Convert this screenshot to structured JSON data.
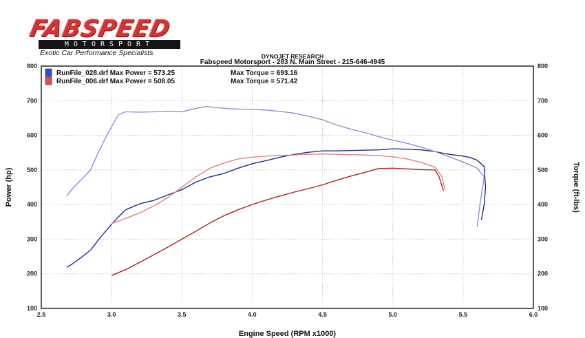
{
  "logo": {
    "word": "FABSPEED",
    "sub": "MOTORSPORT",
    "tagline": "Exotic Car Performance Specialists"
  },
  "header": {
    "line1": "DYNOJET RESEARCH",
    "line2": "Fabspeed Motorsport - 283 N. Main Street - 215-646-4945"
  },
  "chart_data": {
    "type": "line",
    "title": "",
    "xlabel": "Engine Speed (RPM x1000)",
    "ylabel_left": "Power (hp)",
    "ylabel_right": "Torque (ft-lbs)",
    "xlim": [
      2.5,
      6.0
    ],
    "ylim": [
      100,
      800
    ],
    "x_ticks": [
      "2.5",
      "3.0",
      "3.5",
      "4.0",
      "4.5",
      "5.0",
      "5.5",
      "6.0"
    ],
    "y_ticks": [
      "100",
      "200",
      "300",
      "400",
      "500",
      "600",
      "700",
      "800"
    ],
    "grid": true,
    "legend": [
      {
        "label": "RunFile_028.drf Max Power = 573.25",
        "torque_label": "Max Torque = 693.16",
        "color": "#3a44d8"
      },
      {
        "label": "RunFile_006.drf Max Power = 508.05",
        "torque_label": "Max Torque = 571.42",
        "color": "#e05050"
      }
    ],
    "series": [
      {
        "run": "RunFile_028.drf",
        "kind": "power",
        "color": "#1f2d8a",
        "points": [
          [
            2.68,
            219
          ],
          [
            2.72,
            228
          ],
          [
            2.78,
            246
          ],
          [
            2.85,
            268
          ],
          [
            2.92,
            305
          ],
          [
            3.0,
            343
          ],
          [
            3.05,
            365
          ],
          [
            3.1,
            385
          ],
          [
            3.2,
            402
          ],
          [
            3.3,
            412
          ],
          [
            3.4,
            428
          ],
          [
            3.5,
            443
          ],
          [
            3.6,
            465
          ],
          [
            3.7,
            480
          ],
          [
            3.8,
            490
          ],
          [
            3.9,
            505
          ],
          [
            4.0,
            518
          ],
          [
            4.1,
            527
          ],
          [
            4.2,
            537
          ],
          [
            4.3,
            545
          ],
          [
            4.4,
            551
          ],
          [
            4.5,
            555
          ],
          [
            4.6,
            555
          ],
          [
            4.7,
            556
          ],
          [
            4.8,
            557
          ],
          [
            4.9,
            558
          ],
          [
            5.0,
            561
          ],
          [
            5.1,
            560
          ],
          [
            5.2,
            558
          ],
          [
            5.3,
            553
          ],
          [
            5.4,
            545
          ],
          [
            5.5,
            540
          ],
          [
            5.55,
            536
          ],
          [
            5.6,
            528
          ],
          [
            5.65,
            510
          ],
          [
            5.66,
            450
          ],
          [
            5.65,
            400
          ],
          [
            5.63,
            355
          ]
        ]
      },
      {
        "run": "RunFile_028.drf",
        "kind": "torque",
        "color": "#8e8ed8",
        "points": [
          [
            2.68,
            425
          ],
          [
            2.72,
            445
          ],
          [
            2.78,
            470
          ],
          [
            2.85,
            500
          ],
          [
            2.9,
            545
          ],
          [
            2.96,
            595
          ],
          [
            3.0,
            625
          ],
          [
            3.05,
            660
          ],
          [
            3.1,
            668
          ],
          [
            3.2,
            667
          ],
          [
            3.3,
            668
          ],
          [
            3.4,
            670
          ],
          [
            3.5,
            668
          ],
          [
            3.6,
            678
          ],
          [
            3.68,
            683
          ],
          [
            3.8,
            678
          ],
          [
            3.9,
            676
          ],
          [
            4.0,
            675
          ],
          [
            4.1,
            673
          ],
          [
            4.2,
            669
          ],
          [
            4.3,
            664
          ],
          [
            4.4,
            655
          ],
          [
            4.5,
            645
          ],
          [
            4.6,
            630
          ],
          [
            4.7,
            618
          ],
          [
            4.8,
            608
          ],
          [
            4.9,
            596
          ],
          [
            5.0,
            586
          ],
          [
            5.1,
            577
          ],
          [
            5.2,
            566
          ],
          [
            5.3,
            553
          ],
          [
            5.4,
            538
          ],
          [
            5.5,
            523
          ],
          [
            5.6,
            505
          ],
          [
            5.65,
            480
          ],
          [
            5.62,
            400
          ],
          [
            5.6,
            335
          ]
        ]
      },
      {
        "run": "RunFile_006.drf",
        "kind": "power",
        "color": "#b02020",
        "points": [
          [
            3.0,
            195
          ],
          [
            3.1,
            212
          ],
          [
            3.2,
            233
          ],
          [
            3.3,
            255
          ],
          [
            3.4,
            277
          ],
          [
            3.5,
            300
          ],
          [
            3.6,
            323
          ],
          [
            3.7,
            347
          ],
          [
            3.8,
            368
          ],
          [
            3.9,
            385
          ],
          [
            4.0,
            400
          ],
          [
            4.1,
            413
          ],
          [
            4.2,
            425
          ],
          [
            4.3,
            436
          ],
          [
            4.4,
            446
          ],
          [
            4.5,
            457
          ],
          [
            4.6,
            470
          ],
          [
            4.7,
            482
          ],
          [
            4.8,
            493
          ],
          [
            4.9,
            504
          ],
          [
            5.0,
            505
          ],
          [
            5.1,
            503
          ],
          [
            5.2,
            501
          ],
          [
            5.3,
            500
          ],
          [
            5.33,
            480
          ],
          [
            5.36,
            440
          ]
        ]
      },
      {
        "run": "RunFile_006.drf",
        "kind": "torque",
        "color": "#e08080",
        "points": [
          [
            3.0,
            345
          ],
          [
            3.1,
            360
          ],
          [
            3.2,
            376
          ],
          [
            3.3,
            396
          ],
          [
            3.4,
            420
          ],
          [
            3.5,
            450
          ],
          [
            3.6,
            480
          ],
          [
            3.7,
            505
          ],
          [
            3.8,
            520
          ],
          [
            3.9,
            532
          ],
          [
            4.0,
            537
          ],
          [
            4.1,
            540
          ],
          [
            4.2,
            542
          ],
          [
            4.3,
            543
          ],
          [
            4.4,
            545
          ],
          [
            4.5,
            546
          ],
          [
            4.6,
            545
          ],
          [
            4.7,
            544
          ],
          [
            4.8,
            543
          ],
          [
            4.9,
            541
          ],
          [
            5.0,
            538
          ],
          [
            5.1,
            532
          ],
          [
            5.2,
            522
          ],
          [
            5.3,
            508
          ],
          [
            5.35,
            480
          ],
          [
            5.37,
            445
          ]
        ]
      }
    ]
  }
}
